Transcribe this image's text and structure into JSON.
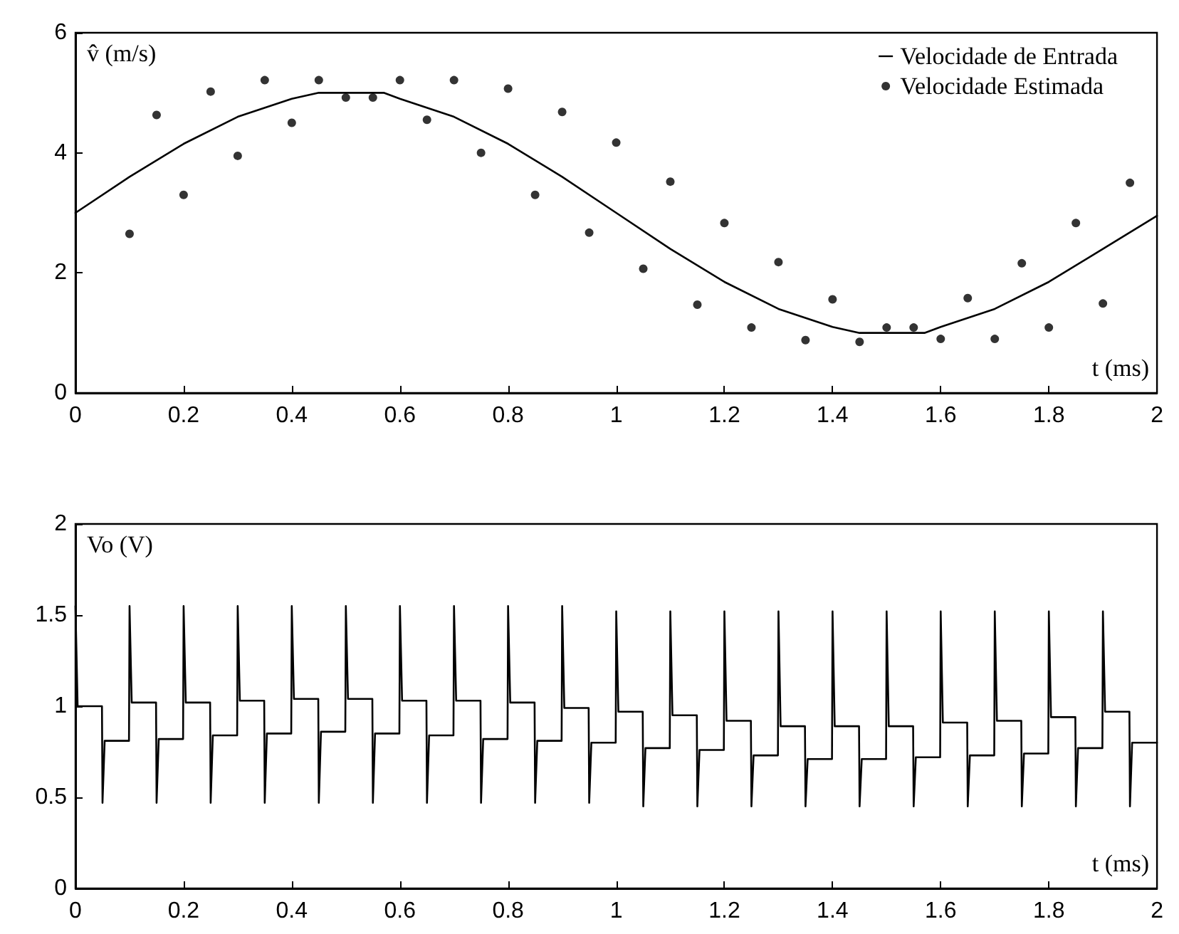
{
  "chart_data": [
    {
      "type": "line",
      "xlabel": "t (ms)",
      "ylabel": "v̂ (m/s)",
      "xlim": [
        0,
        2
      ],
      "xticks": [
        0,
        0.2,
        0.4,
        0.6,
        0.8,
        1,
        1.2,
        1.4,
        1.6,
        1.8,
        2
      ],
      "ylim": [
        0,
        6
      ],
      "yticks": [
        0,
        2,
        4,
        6
      ],
      "grid": false,
      "legend": "top right",
      "series": [
        {
          "name": "Velocidade de Entrada",
          "color": "#000000",
          "marker": "none",
          "line_style": "solid",
          "x": [
            0,
            0.1,
            0.2,
            0.3,
            0.4,
            0.45,
            0.5,
            0.57,
            0.6,
            0.7,
            0.8,
            0.9,
            1.0,
            1.1,
            1.2,
            1.3,
            1.4,
            1.45,
            1.5,
            1.57,
            1.6,
            1.7,
            1.8,
            1.9,
            2.0
          ],
          "values": [
            3.0,
            3.6,
            4.15,
            4.6,
            4.9,
            5.0,
            5.0,
            5.0,
            4.9,
            4.6,
            4.15,
            3.6,
            3.0,
            2.4,
            1.85,
            1.4,
            1.1,
            1.0,
            1.0,
            1.0,
            1.1,
            1.4,
            1.85,
            2.4,
            2.95
          ]
        },
        {
          "name": "Velocidade Estimada",
          "type": "scatter",
          "color": "#000000",
          "marker": "circle",
          "x": [
            0.1,
            0.15,
            0.2,
            0.25,
            0.3,
            0.35,
            0.4,
            0.45,
            0.5,
            0.55,
            0.6,
            0.65,
            0.7,
            0.75,
            0.8,
            0.85,
            0.9,
            0.95,
            1.0,
            1.05,
            1.1,
            1.15,
            1.2,
            1.25,
            1.3,
            1.35,
            1.4,
            1.45,
            1.5,
            1.55,
            1.6,
            1.65,
            1.7,
            1.75,
            1.8,
            1.85,
            1.9,
            1.95
          ],
          "values": [
            2.65,
            4.63,
            3.3,
            5.02,
            3.95,
            5.21,
            4.5,
            5.21,
            4.92,
            4.92,
            5.21,
            4.55,
            5.21,
            4.0,
            5.07,
            3.3,
            4.68,
            2.67,
            4.17,
            2.07,
            3.52,
            1.47,
            2.83,
            1.09,
            2.18,
            0.88,
            1.56,
            0.85,
            1.09,
            1.09,
            0.9,
            1.58,
            0.9,
            2.16,
            1.09,
            2.83,
            1.49,
            3.5
          ]
        }
      ]
    },
    {
      "type": "line",
      "xlabel": "t (ms)",
      "ylabel": "Vo (V)",
      "xlim": [
        0,
        2
      ],
      "xticks": [
        0,
        0.2,
        0.4,
        0.6,
        0.8,
        1,
        1.2,
        1.4,
        1.6,
        1.8,
        2
      ],
      "ylim": [
        0,
        2
      ],
      "yticks": [
        0,
        0.5,
        1,
        1.5,
        2
      ],
      "grid": false,
      "legend": false,
      "series": [
        {
          "color": "#000000",
          "marker": "none",
          "line_style": "solid",
          "x": [
            0,
            0.004,
            0.049,
            0.05,
            0.054,
            0.099,
            0.1,
            0.104,
            0.149,
            0.15,
            0.154,
            0.199,
            0.2,
            0.204,
            0.249,
            0.25,
            0.254,
            0.299,
            0.3,
            0.304,
            0.349,
            0.35,
            0.354,
            0.399,
            0.4,
            0.404,
            0.449,
            0.45,
            0.454,
            0.499,
            0.5,
            0.504,
            0.549,
            0.55,
            0.554,
            0.599,
            0.6,
            0.604,
            0.649,
            0.65,
            0.654,
            0.699,
            0.7,
            0.704,
            0.749,
            0.75,
            0.754,
            0.799,
            0.8,
            0.804,
            0.849,
            0.85,
            0.854,
            0.899,
            0.9,
            0.904,
            0.949,
            0.95,
            0.954,
            0.999,
            1.0,
            1.004,
            1.049,
            1.05,
            1.054,
            1.099,
            1.1,
            1.104,
            1.149,
            1.15,
            1.154,
            1.199,
            1.2,
            1.204,
            1.249,
            1.25,
            1.254,
            1.299,
            1.3,
            1.304,
            1.349,
            1.35,
            1.354,
            1.399,
            1.4,
            1.404,
            1.449,
            1.45,
            1.454,
            1.499,
            1.5,
            1.504,
            1.549,
            1.55,
            1.554,
            1.599,
            1.6,
            1.604,
            1.649,
            1.65,
            1.654,
            1.699,
            1.7,
            1.704,
            1.749,
            1.75,
            1.754,
            1.799,
            1.8,
            1.804,
            1.849,
            1.85,
            1.854,
            1.899,
            1.9,
            1.904,
            1.949,
            1.95,
            1.954,
            2.0
          ],
          "values": [
            1.55,
            1.0,
            1.0,
            0.47,
            0.81,
            0.81,
            1.55,
            1.02,
            1.02,
            0.47,
            0.82,
            0.82,
            1.55,
            1.02,
            1.02,
            0.47,
            0.84,
            0.84,
            1.55,
            1.03,
            1.03,
            0.47,
            0.85,
            0.85,
            1.55,
            1.04,
            1.04,
            0.47,
            0.86,
            0.86,
            1.55,
            1.04,
            1.04,
            0.47,
            0.85,
            0.85,
            1.55,
            1.03,
            1.03,
            0.47,
            0.84,
            0.84,
            1.55,
            1.03,
            1.03,
            0.47,
            0.82,
            0.82,
            1.55,
            1.02,
            1.02,
            0.47,
            0.81,
            0.81,
            1.55,
            0.99,
            0.99,
            0.47,
            0.8,
            0.8,
            1.52,
            0.97,
            0.97,
            0.45,
            0.77,
            0.77,
            1.52,
            0.95,
            0.95,
            0.45,
            0.76,
            0.76,
            1.52,
            0.92,
            0.92,
            0.45,
            0.73,
            0.73,
            1.52,
            0.89,
            0.89,
            0.45,
            0.71,
            0.71,
            1.52,
            0.89,
            0.89,
            0.45,
            0.71,
            0.71,
            1.52,
            0.89,
            0.89,
            0.45,
            0.72,
            0.72,
            1.52,
            0.91,
            0.91,
            0.45,
            0.73,
            0.73,
            1.52,
            0.92,
            0.92,
            0.45,
            0.74,
            0.74,
            1.52,
            0.94,
            0.94,
            0.45,
            0.77,
            0.77,
            1.52,
            0.97,
            0.97,
            0.45,
            0.8,
            0.8
          ]
        }
      ]
    }
  ]
}
